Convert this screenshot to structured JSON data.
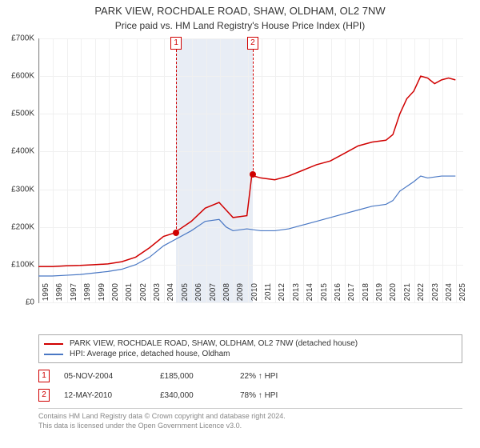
{
  "title": "PARK VIEW, ROCHDALE ROAD, SHAW, OLDHAM, OL2 7NW",
  "subtitle": "Price paid vs. HM Land Registry's House Price Index (HPI)",
  "chart": {
    "type": "line",
    "x_min": 1995,
    "x_max": 2025.5,
    "y_min": 0,
    "y_max": 700000,
    "y_ticks": [
      0,
      100000,
      200000,
      300000,
      400000,
      500000,
      600000,
      700000
    ],
    "y_tick_labels": [
      "£0",
      "£100K",
      "£200K",
      "£300K",
      "£400K",
      "£500K",
      "£600K",
      "£700K"
    ],
    "x_ticks": [
      1995,
      1996,
      1997,
      1998,
      1999,
      2000,
      2001,
      2002,
      2003,
      2004,
      2005,
      2006,
      2007,
      2008,
      2009,
      2010,
      2011,
      2012,
      2013,
      2014,
      2015,
      2016,
      2017,
      2018,
      2019,
      2020,
      2021,
      2022,
      2023,
      2024,
      2025
    ],
    "background_color": "#ffffff",
    "grid_color": "#f0f0f0",
    "shaded_band": {
      "from": 2004.85,
      "to": 2010.36,
      "color": "#e8edf5"
    },
    "series": [
      {
        "name": "property",
        "color": "#d00000",
        "width": 1.5,
        "points": [
          [
            1995,
            95000
          ],
          [
            1996,
            95000
          ],
          [
            1997,
            97000
          ],
          [
            1998,
            98000
          ],
          [
            1999,
            100000
          ],
          [
            2000,
            102000
          ],
          [
            2001,
            108000
          ],
          [
            2002,
            120000
          ],
          [
            2003,
            145000
          ],
          [
            2004,
            175000
          ],
          [
            2004.85,
            185000
          ],
          [
            2005,
            190000
          ],
          [
            2006,
            215000
          ],
          [
            2007,
            250000
          ],
          [
            2008,
            265000
          ],
          [
            2008.5,
            245000
          ],
          [
            2009,
            225000
          ],
          [
            2010,
            230000
          ],
          [
            2010.36,
            340000
          ],
          [
            2010.5,
            335000
          ],
          [
            2011,
            330000
          ],
          [
            2012,
            325000
          ],
          [
            2013,
            335000
          ],
          [
            2014,
            350000
          ],
          [
            2015,
            365000
          ],
          [
            2016,
            375000
          ],
          [
            2017,
            395000
          ],
          [
            2018,
            415000
          ],
          [
            2019,
            425000
          ],
          [
            2020,
            430000
          ],
          [
            2020.5,
            445000
          ],
          [
            2021,
            500000
          ],
          [
            2021.5,
            540000
          ],
          [
            2022,
            560000
          ],
          [
            2022.5,
            600000
          ],
          [
            2023,
            595000
          ],
          [
            2023.5,
            580000
          ],
          [
            2024,
            590000
          ],
          [
            2024.5,
            595000
          ],
          [
            2025,
            590000
          ]
        ]
      },
      {
        "name": "hpi",
        "color": "#4a78c4",
        "width": 1.2,
        "points": [
          [
            1995,
            70000
          ],
          [
            1996,
            70000
          ],
          [
            1997,
            72000
          ],
          [
            1998,
            74000
          ],
          [
            1999,
            78000
          ],
          [
            2000,
            82000
          ],
          [
            2001,
            88000
          ],
          [
            2002,
            100000
          ],
          [
            2003,
            120000
          ],
          [
            2004,
            150000
          ],
          [
            2005,
            170000
          ],
          [
            2006,
            190000
          ],
          [
            2007,
            215000
          ],
          [
            2008,
            220000
          ],
          [
            2008.5,
            200000
          ],
          [
            2009,
            190000
          ],
          [
            2010,
            195000
          ],
          [
            2011,
            190000
          ],
          [
            2012,
            190000
          ],
          [
            2013,
            195000
          ],
          [
            2014,
            205000
          ],
          [
            2015,
            215000
          ],
          [
            2016,
            225000
          ],
          [
            2017,
            235000
          ],
          [
            2018,
            245000
          ],
          [
            2019,
            255000
          ],
          [
            2020,
            260000
          ],
          [
            2020.5,
            270000
          ],
          [
            2021,
            295000
          ],
          [
            2022,
            320000
          ],
          [
            2022.5,
            335000
          ],
          [
            2023,
            330000
          ],
          [
            2024,
            335000
          ],
          [
            2025,
            335000
          ]
        ]
      }
    ],
    "markers": [
      {
        "num": "1",
        "x": 2004.85,
        "y": 185000
      },
      {
        "num": "2",
        "x": 2010.36,
        "y": 340000
      }
    ]
  },
  "legend": {
    "items": [
      {
        "color": "#d00000",
        "label": "PARK VIEW, ROCHDALE ROAD, SHAW, OLDHAM, OL2 7NW (detached house)"
      },
      {
        "color": "#4a78c4",
        "label": "HPI: Average price, detached house, Oldham"
      }
    ]
  },
  "events": [
    {
      "num": "1",
      "date": "05-NOV-2004",
      "price": "£185,000",
      "diff": "22% ↑ HPI"
    },
    {
      "num": "2",
      "date": "12-MAY-2010",
      "price": "£340,000",
      "diff": "78% ↑ HPI"
    }
  ],
  "footer_line1": "Contains HM Land Registry data © Crown copyright and database right 2024.",
  "footer_line2": "This data is licensed under the Open Government Licence v3.0."
}
